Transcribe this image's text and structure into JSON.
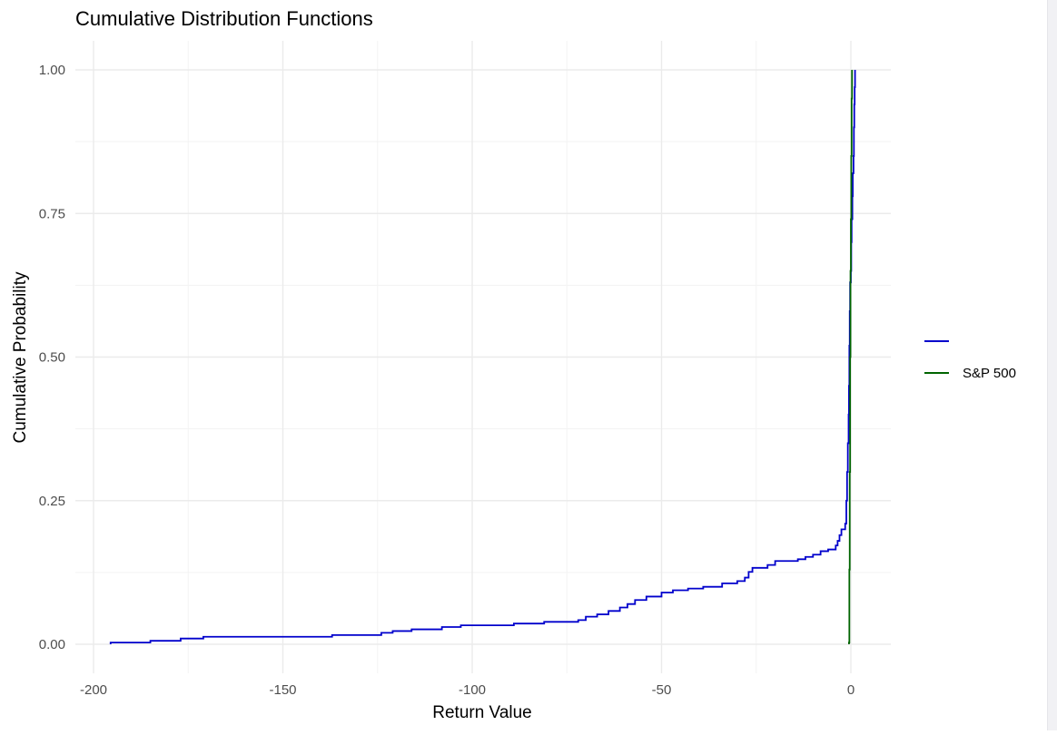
{
  "chart_data": {
    "type": "line",
    "title": "Cumulative Distribution Functions",
    "xlabel": "Return Value",
    "ylabel": "Cumulative Probability",
    "xlim": [
      -200,
      10
    ],
    "ylim": [
      0,
      1
    ],
    "x_ticks": [
      -200,
      -150,
      -100,
      -50,
      0
    ],
    "x_tick_labels": [
      "-200",
      "-150",
      "-100",
      "-50",
      "0"
    ],
    "y_ticks": [
      0,
      0.25,
      0.5,
      0.75,
      1
    ],
    "y_tick_labels": [
      "0.00",
      "0.25",
      "0.50",
      "0.75",
      "1.00"
    ],
    "grid": true,
    "legend_position": "right",
    "series": [
      {
        "name": "",
        "color": "#0000cc",
        "step": true,
        "points": [
          [
            -195.5,
            0.003
          ],
          [
            -185,
            0.006
          ],
          [
            -177,
            0.01
          ],
          [
            -171,
            0.013
          ],
          [
            -137,
            0.016
          ],
          [
            -124,
            0.02
          ],
          [
            -121,
            0.023
          ],
          [
            -116,
            0.026
          ],
          [
            -108,
            0.03
          ],
          [
            -103,
            0.033
          ],
          [
            -89,
            0.036
          ],
          [
            -81,
            0.039
          ],
          [
            -72,
            0.042
          ],
          [
            -70,
            0.048
          ],
          [
            -67,
            0.052
          ],
          [
            -64,
            0.058
          ],
          [
            -61,
            0.064
          ],
          [
            -59,
            0.07
          ],
          [
            -57,
            0.077
          ],
          [
            -54,
            0.083
          ],
          [
            -50,
            0.09
          ],
          [
            -47,
            0.094
          ],
          [
            -43,
            0.097
          ],
          [
            -39,
            0.1
          ],
          [
            -34,
            0.106
          ],
          [
            -30,
            0.11
          ],
          [
            -28,
            0.116
          ],
          [
            -27,
            0.126
          ],
          [
            -26,
            0.133
          ],
          [
            -22,
            0.138
          ],
          [
            -20,
            0.145
          ],
          [
            -14,
            0.148
          ],
          [
            -12,
            0.152
          ],
          [
            -10,
            0.156
          ],
          [
            -8,
            0.162
          ],
          [
            -6,
            0.165
          ],
          [
            -4,
            0.172
          ],
          [
            -3.5,
            0.18
          ],
          [
            -3,
            0.19
          ],
          [
            -2.5,
            0.2
          ],
          [
            -1.5,
            0.21
          ],
          [
            -1.2,
            0.25
          ],
          [
            -1,
            0.3
          ],
          [
            -0.8,
            0.35
          ],
          [
            -0.6,
            0.4
          ],
          [
            -0.5,
            0.45
          ],
          [
            -0.4,
            0.52
          ],
          [
            -0.3,
            0.58
          ],
          [
            -0.2,
            0.63
          ],
          [
            0,
            0.65
          ],
          [
            0.1,
            0.7
          ],
          [
            0.2,
            0.74
          ],
          [
            0.4,
            0.78
          ],
          [
            0.5,
            0.82
          ],
          [
            0.7,
            0.85
          ],
          [
            0.8,
            0.9
          ],
          [
            0.9,
            0.94
          ],
          [
            1,
            0.97
          ],
          [
            1.1,
            1.0
          ]
        ]
      },
      {
        "name": "S&P 500",
        "color": "#006400",
        "step": true,
        "points": [
          [
            -0.5,
            0.003
          ],
          [
            -0.4,
            0.13
          ],
          [
            -0.3,
            0.3
          ],
          [
            -0.2,
            0.5
          ],
          [
            -0.1,
            0.65
          ],
          [
            0,
            0.74
          ],
          [
            0.1,
            0.85
          ],
          [
            0.2,
            0.95
          ],
          [
            0.3,
            1.0
          ]
        ]
      }
    ]
  }
}
